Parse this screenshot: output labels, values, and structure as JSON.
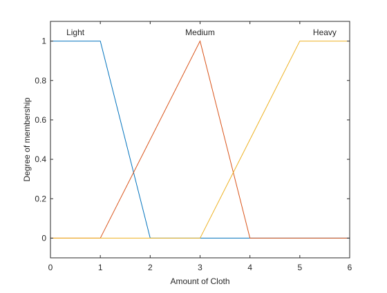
{
  "chart_data": {
    "type": "line",
    "xlabel": "Amount of Cloth",
    "ylabel": "Degree of membership",
    "xlim": [
      0,
      6
    ],
    "ylim": [
      -0.1,
      1.1
    ],
    "xticks": [
      0,
      1,
      2,
      3,
      4,
      5,
      6
    ],
    "yticks": [
      0,
      0.2,
      0.4,
      0.6,
      0.8,
      1
    ],
    "ytick_labels": [
      "0",
      "0.2",
      "0.4",
      "0.6",
      "0.8",
      "1"
    ],
    "grid": false,
    "legend": "none",
    "series": [
      {
        "name": "Light",
        "color": "#0072bd",
        "x": [
          0,
          1,
          2,
          6
        ],
        "y": [
          1,
          1,
          0,
          0
        ],
        "label_x": 0.5
      },
      {
        "name": "Medium",
        "color": "#d95319",
        "x": [
          0,
          1,
          3,
          4,
          6
        ],
        "y": [
          0,
          0,
          1,
          0,
          0
        ],
        "label_x": 3
      },
      {
        "name": "Heavy",
        "color": "#edb120",
        "x": [
          0,
          3,
          5,
          6
        ],
        "y": [
          0,
          0,
          1,
          1
        ],
        "label_x": 5.5
      }
    ]
  }
}
